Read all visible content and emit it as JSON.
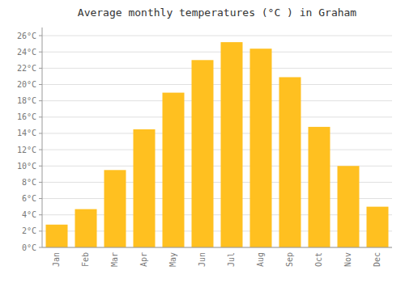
{
  "chart_data": {
    "type": "bar",
    "title": "Average monthly temperatures (°C ) in Graham",
    "categories": [
      "Jan",
      "Feb",
      "Mar",
      "Apr",
      "May",
      "Jun",
      "Jul",
      "Aug",
      "Sep",
      "Oct",
      "Nov",
      "Dec"
    ],
    "values": [
      2.8,
      4.7,
      9.5,
      14.5,
      19.0,
      23.0,
      25.2,
      24.4,
      20.9,
      14.8,
      10.0,
      5.0
    ],
    "color": "#FFC020",
    "ylim": [
      0,
      27
    ],
    "yticks": [
      {
        "value": 0,
        "label": "0°C"
      },
      {
        "value": 2,
        "label": "2°C"
      },
      {
        "value": 4,
        "label": "4°C"
      },
      {
        "value": 6,
        "label": "6°C"
      },
      {
        "value": 8,
        "label": "8°C"
      },
      {
        "value": 10,
        "label": "10°C"
      },
      {
        "value": 12,
        "label": "12°C"
      },
      {
        "value": 14,
        "label": "14°C"
      },
      {
        "value": 16,
        "label": "16°C"
      },
      {
        "value": 18,
        "label": "18°C"
      },
      {
        "value": 20,
        "label": "20°C"
      },
      {
        "value": 22,
        "label": "22°C"
      },
      {
        "value": 24,
        "label": "24°C"
      },
      {
        "value": 26,
        "label": "26°C"
      }
    ],
    "grid": true
  }
}
